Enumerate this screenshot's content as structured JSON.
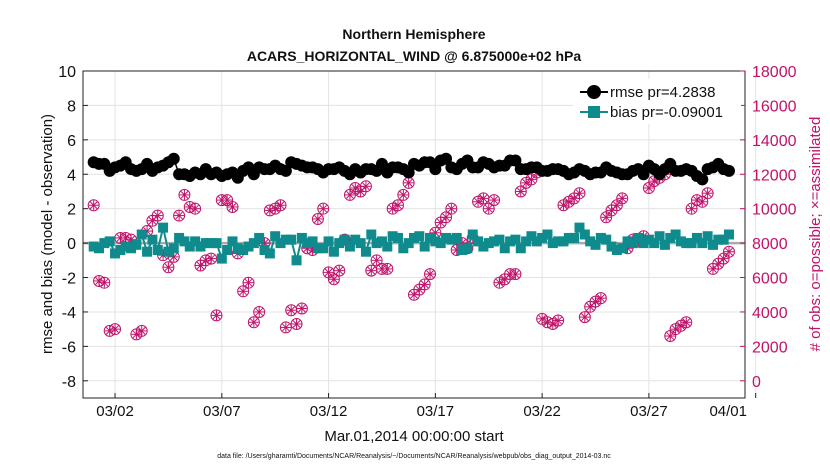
{
  "chart_data": {
    "type": "line",
    "title": "Northern Hemisphere",
    "subtitle": "ACARS_HORIZONTAL_WIND @ 6.875000e+02 hPa",
    "ylabel": "rmse and bias (model - observation)",
    "y2label": "# of obs: o=possible; ×=assimilated",
    "xlabel": "Mar.01,2014 00:00:00 start",
    "footnote": "data file: /Users/gharamti/Documents/NCAR/Reanalysis/~/Documents/NCAR/Reanalysis/webpub/obs_diag_output_2014-03.nc",
    "ylim": [
      -9,
      10
    ],
    "y2lim": [
      -1000,
      18000
    ],
    "xlim": [
      0.5,
      31.5
    ],
    "yticks": [
      "10",
      "8",
      "6",
      "4",
      "2",
      "0",
      "-2",
      "-4",
      "-6",
      "-8"
    ],
    "y2ticks": [
      "18000",
      "16000",
      "14000",
      "12000",
      "10000",
      "8000",
      "6000",
      "4000",
      "2000",
      "0"
    ],
    "xtick_labels": [
      "03/02",
      "03/07",
      "03/12",
      "03/17",
      "03/22",
      "03/27",
      "04/01"
    ],
    "xtick_days": [
      2,
      7,
      12,
      17,
      22,
      27,
      32
    ],
    "legend": [
      "rmse pr=4.2838",
      "bias pr=-0.09001"
    ],
    "legend_position": "top-right",
    "colors": {
      "rmse": "#000000",
      "bias": "#0f8b8d",
      "obs": "#c0136a",
      "zero": "#aaaaaa",
      "grid": "#e3e3e3"
    },
    "steps_per_day": 4,
    "start_day": 1.0,
    "rmse": [
      4.7,
      4.6,
      4.6,
      4.2,
      4.4,
      4.5,
      4.7,
      4.3,
      4.2,
      4.3,
      4.6,
      4.2,
      4.4,
      4.5,
      4.7,
      4.9,
      4.0,
      4.0,
      3.9,
      4.1,
      4.0,
      4.3,
      4.0,
      4.1,
      3.9,
      4.0,
      4.1,
      3.8,
      4.2,
      4.4,
      4.0,
      4.4,
      4.3,
      4.3,
      4.5,
      4.3,
      4.2,
      4.7,
      4.6,
      4.5,
      4.4,
      4.4,
      4.3,
      4.1,
      4.3,
      4.3,
      4.4,
      4.2,
      4.0,
      4.3,
      4.1,
      4.3,
      4.3,
      4.2,
      4.6,
      4.1,
      4.4,
      4.4,
      4.3,
      4.1,
      4.6,
      4.5,
      4.7,
      4.7,
      4.3,
      4.8,
      4.9,
      4.4,
      4.3,
      4.6,
      4.8,
      4.4,
      4.4,
      4.7,
      4.6,
      4.4,
      4.5,
      4.5,
      4.8,
      4.8,
      4.3,
      4.3,
      4.4,
      4.4,
      4.2,
      4.2,
      4.3,
      4.3,
      4.2,
      4.0,
      4.1,
      4.3,
      4.2,
      4.0,
      4.1,
      4.1,
      4.4,
      4.2,
      4.1,
      4.0,
      4.0,
      4.2,
      4.3,
      4.0,
      4.5,
      4.3,
      4.0,
      4.3,
      4.6,
      4.2,
      4.2,
      4.3,
      4.2,
      3.9,
      3.7,
      4.3,
      4.4,
      4.6,
      4.3,
      4.2
    ],
    "bias": [
      -0.2,
      -0.3,
      0.0,
      0.1,
      -0.6,
      -0.4,
      -0.2,
      -0.3,
      -0.1,
      0.5,
      -0.5,
      0.2,
      -0.4,
      0.9,
      -0.5,
      -0.3,
      0.3,
      0.1,
      -0.2,
      0.1,
      -0.2,
      0.0,
      0.0,
      0.0,
      -0.9,
      -0.4,
      0.1,
      -0.3,
      -0.4,
      -0.2,
      0.0,
      0.3,
      -0.4,
      -0.6,
      0.4,
      0.0,
      0.2,
      0.2,
      -1.0,
      0.3,
      0.0,
      0.1,
      -0.3,
      -0.3,
      0.1,
      -0.5,
      0.0,
      0.2,
      -0.2,
      0.2,
      0.0,
      -0.5,
      0.5,
      0.0,
      0.1,
      -0.2,
      0.4,
      0.3,
      -0.3,
      0.0,
      0.3,
      0.4,
      -0.2,
      0.3,
      0.1,
      0.0,
      0.3,
      0.2,
      0.3,
      -0.4,
      -0.3,
      0.5,
      0.1,
      -0.2,
      0.0,
      0.1,
      0.2,
      -0.3,
      0.1,
      0.2,
      -0.3,
      0.1,
      0.4,
      0.1,
      0.3,
      0.5,
      0.0,
      0.1,
      0.1,
      0.3,
      0.3,
      0.9,
      0.5,
      0.1,
      -0.1,
      0.3,
      0.2,
      -0.2,
      -0.4,
      -0.3,
      0.1,
      0.0,
      0.3,
      0.0,
      0.2,
      0.0,
      0.4,
      -0.1,
      0.3,
      0.5,
      0.1,
      0.0,
      0.0,
      0.3,
      0.0,
      0.4,
      -0.1,
      0.2,
      0.2,
      0.5
    ],
    "obs_possible": [
      10200,
      5800,
      5700,
      2900,
      3000,
      8300,
      8300,
      8200,
      2700,
      2900,
      8700,
      9300,
      9600,
      7300,
      6600,
      7200,
      9600,
      10800,
      10100,
      10000,
      6700,
      7000,
      7100,
      3800,
      10500,
      10500,
      10100,
      7400,
      5200,
      5700,
      3400,
      4000,
      8000,
      9900,
      10000,
      10200,
      3100,
      4100,
      3300,
      4200,
      7700,
      7600,
      9400,
      10000,
      6300,
      5900,
      6400,
      8200,
      10800,
      11200,
      11000,
      11300,
      6400,
      7000,
      6500,
      6500,
      10000,
      10200,
      10800,
      11500,
      5000,
      5300,
      5600,
      6200,
      8600,
      9200,
      9500,
      10000,
      7600,
      8000,
      7700,
      8300,
      10400,
      10600,
      10000,
      10500,
      5700,
      5900,
      6200,
      6200,
      11000,
      11500,
      11700,
      12100,
      3600,
      3400,
      3300,
      3500,
      10200,
      10400,
      10600,
      10900,
      3700,
      4300,
      4600,
      4800,
      9500,
      9900,
      10200,
      10600,
      7700,
      8200,
      8100,
      8400,
      11200,
      11600,
      11800,
      12000,
      2600,
      3000,
      3200,
      3400,
      10000,
      10500,
      10400,
      10900,
      6500,
      6800,
      7100,
      7500
    ]
  }
}
